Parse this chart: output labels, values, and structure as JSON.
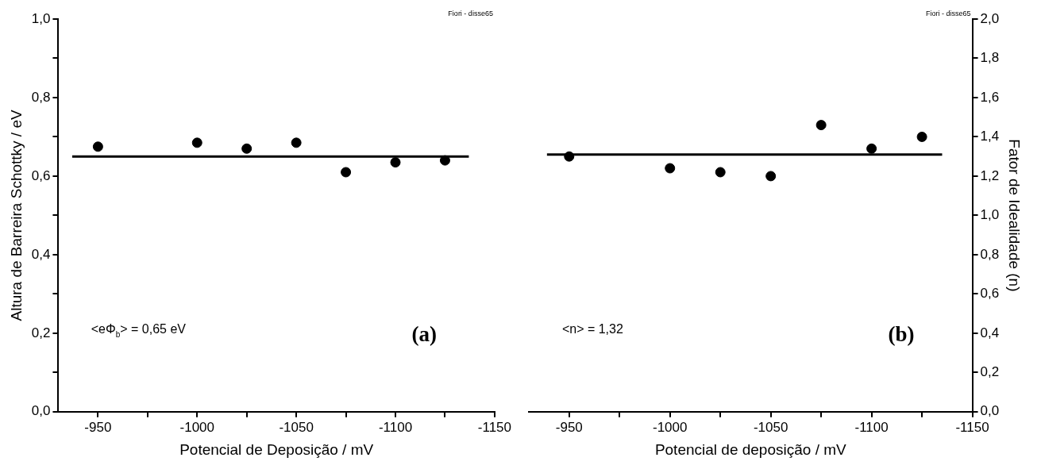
{
  "chart_data": [
    {
      "type": "scatter",
      "xlabel": "Potencial de Deposição / mV",
      "ylabel": "Altura de Barreira Schottky / eV",
      "xlim": [
        -930,
        -1150
      ],
      "xticks": [
        -950,
        {
          "value": -975,
          "label": null
        },
        -1000,
        {
          "value": -1025,
          "label": null
        },
        -1050,
        {
          "value": -1075,
          "label": null
        },
        -1100,
        {
          "value": -1125,
          "label": null
        },
        -1150
      ],
      "ylim": [
        0,
        1
      ],
      "yticks": [
        {
          "value": 0,
          "label": "0,0"
        },
        {
          "value": 0.1,
          "label": null
        },
        {
          "value": 0.2,
          "label": "0,2"
        },
        {
          "value": 0.3,
          "label": null
        },
        {
          "value": 0.4,
          "label": "0,4"
        },
        {
          "value": 0.5,
          "label": null
        },
        {
          "value": 0.6,
          "label": "0,6"
        },
        {
          "value": 0.7,
          "label": null
        },
        {
          "value": 0.8,
          "label": "0,8"
        },
        {
          "value": 0.9,
          "label": null
        },
        {
          "value": 1,
          "label": "1,0"
        }
      ],
      "grid": false,
      "legend": false,
      "marker": "circle",
      "annotations": [
        "<eΦ$_{b}$> = 0,65 eV",
        "(a)",
        "Fiori - disse65"
      ],
      "series": [
        {
          "type": "scatter",
          "color": "#000000",
          "x": [
            -950,
            -1000,
            -1025,
            -1050,
            -1075,
            -1100,
            -1125
          ],
          "values": [
            0.675,
            0.685,
            0.67,
            0.685,
            0.61,
            0.635,
            0.64
          ]
        },
        {
          "type": "line",
          "color": "#000000",
          "marker": "none",
          "x": [
            -937,
            -1137
          ],
          "values": [
            0.65,
            0.65
          ]
        }
      ]
    },
    {
      "type": "scatter",
      "xlabel": "Potencial de deposição / mV",
      "y2label": "Fator de Idealidade (n)",
      "xlim": [
        -930,
        -1150
      ],
      "xticks": [
        -950,
        {
          "value": -975,
          "label": null
        },
        -1000,
        {
          "value": -1025,
          "label": null
        },
        -1050,
        {
          "value": -1075,
          "label": null
        },
        -1100,
        {
          "value": -1125,
          "label": null
        },
        -1150
      ],
      "y2lim": [
        0,
        2
      ],
      "y2ticks": [
        {
          "value": 0,
          "label": "0,0"
        },
        {
          "value": 0.2,
          "label": "0,2"
        },
        {
          "value": 0.4,
          "label": "0,4"
        },
        {
          "value": 0.6,
          "label": "0,6"
        },
        {
          "value": 0.8,
          "label": "0,8"
        },
        {
          "value": 1,
          "label": "1,0"
        },
        {
          "value": 1.2,
          "label": "1,2"
        },
        {
          "value": 1.4,
          "label": "1,4"
        },
        {
          "value": 1.6,
          "label": "1,6"
        },
        {
          "value": 1.8,
          "label": "1,8"
        },
        {
          "value": 2,
          "label": "2,0"
        }
      ],
      "grid": false,
      "legend": false,
      "marker": "circle",
      "annotations": [
        "<n> = 1,32",
        "(b)",
        "Fiori - disse65"
      ],
      "series": [
        {
          "type": "scatter",
          "axis": "y2",
          "color": "#000000",
          "x": [
            -950,
            -1000,
            -1025,
            -1050,
            -1075,
            -1100,
            -1125
          ],
          "values": [
            1.3,
            1.24,
            1.22,
            1.2,
            1.46,
            1.34,
            1.4
          ]
        },
        {
          "type": "line",
          "axis": "y2",
          "color": "#000000",
          "marker": "none",
          "x": [
            -939,
            -1135
          ],
          "values": [
            1.31,
            1.31
          ]
        }
      ]
    }
  ]
}
